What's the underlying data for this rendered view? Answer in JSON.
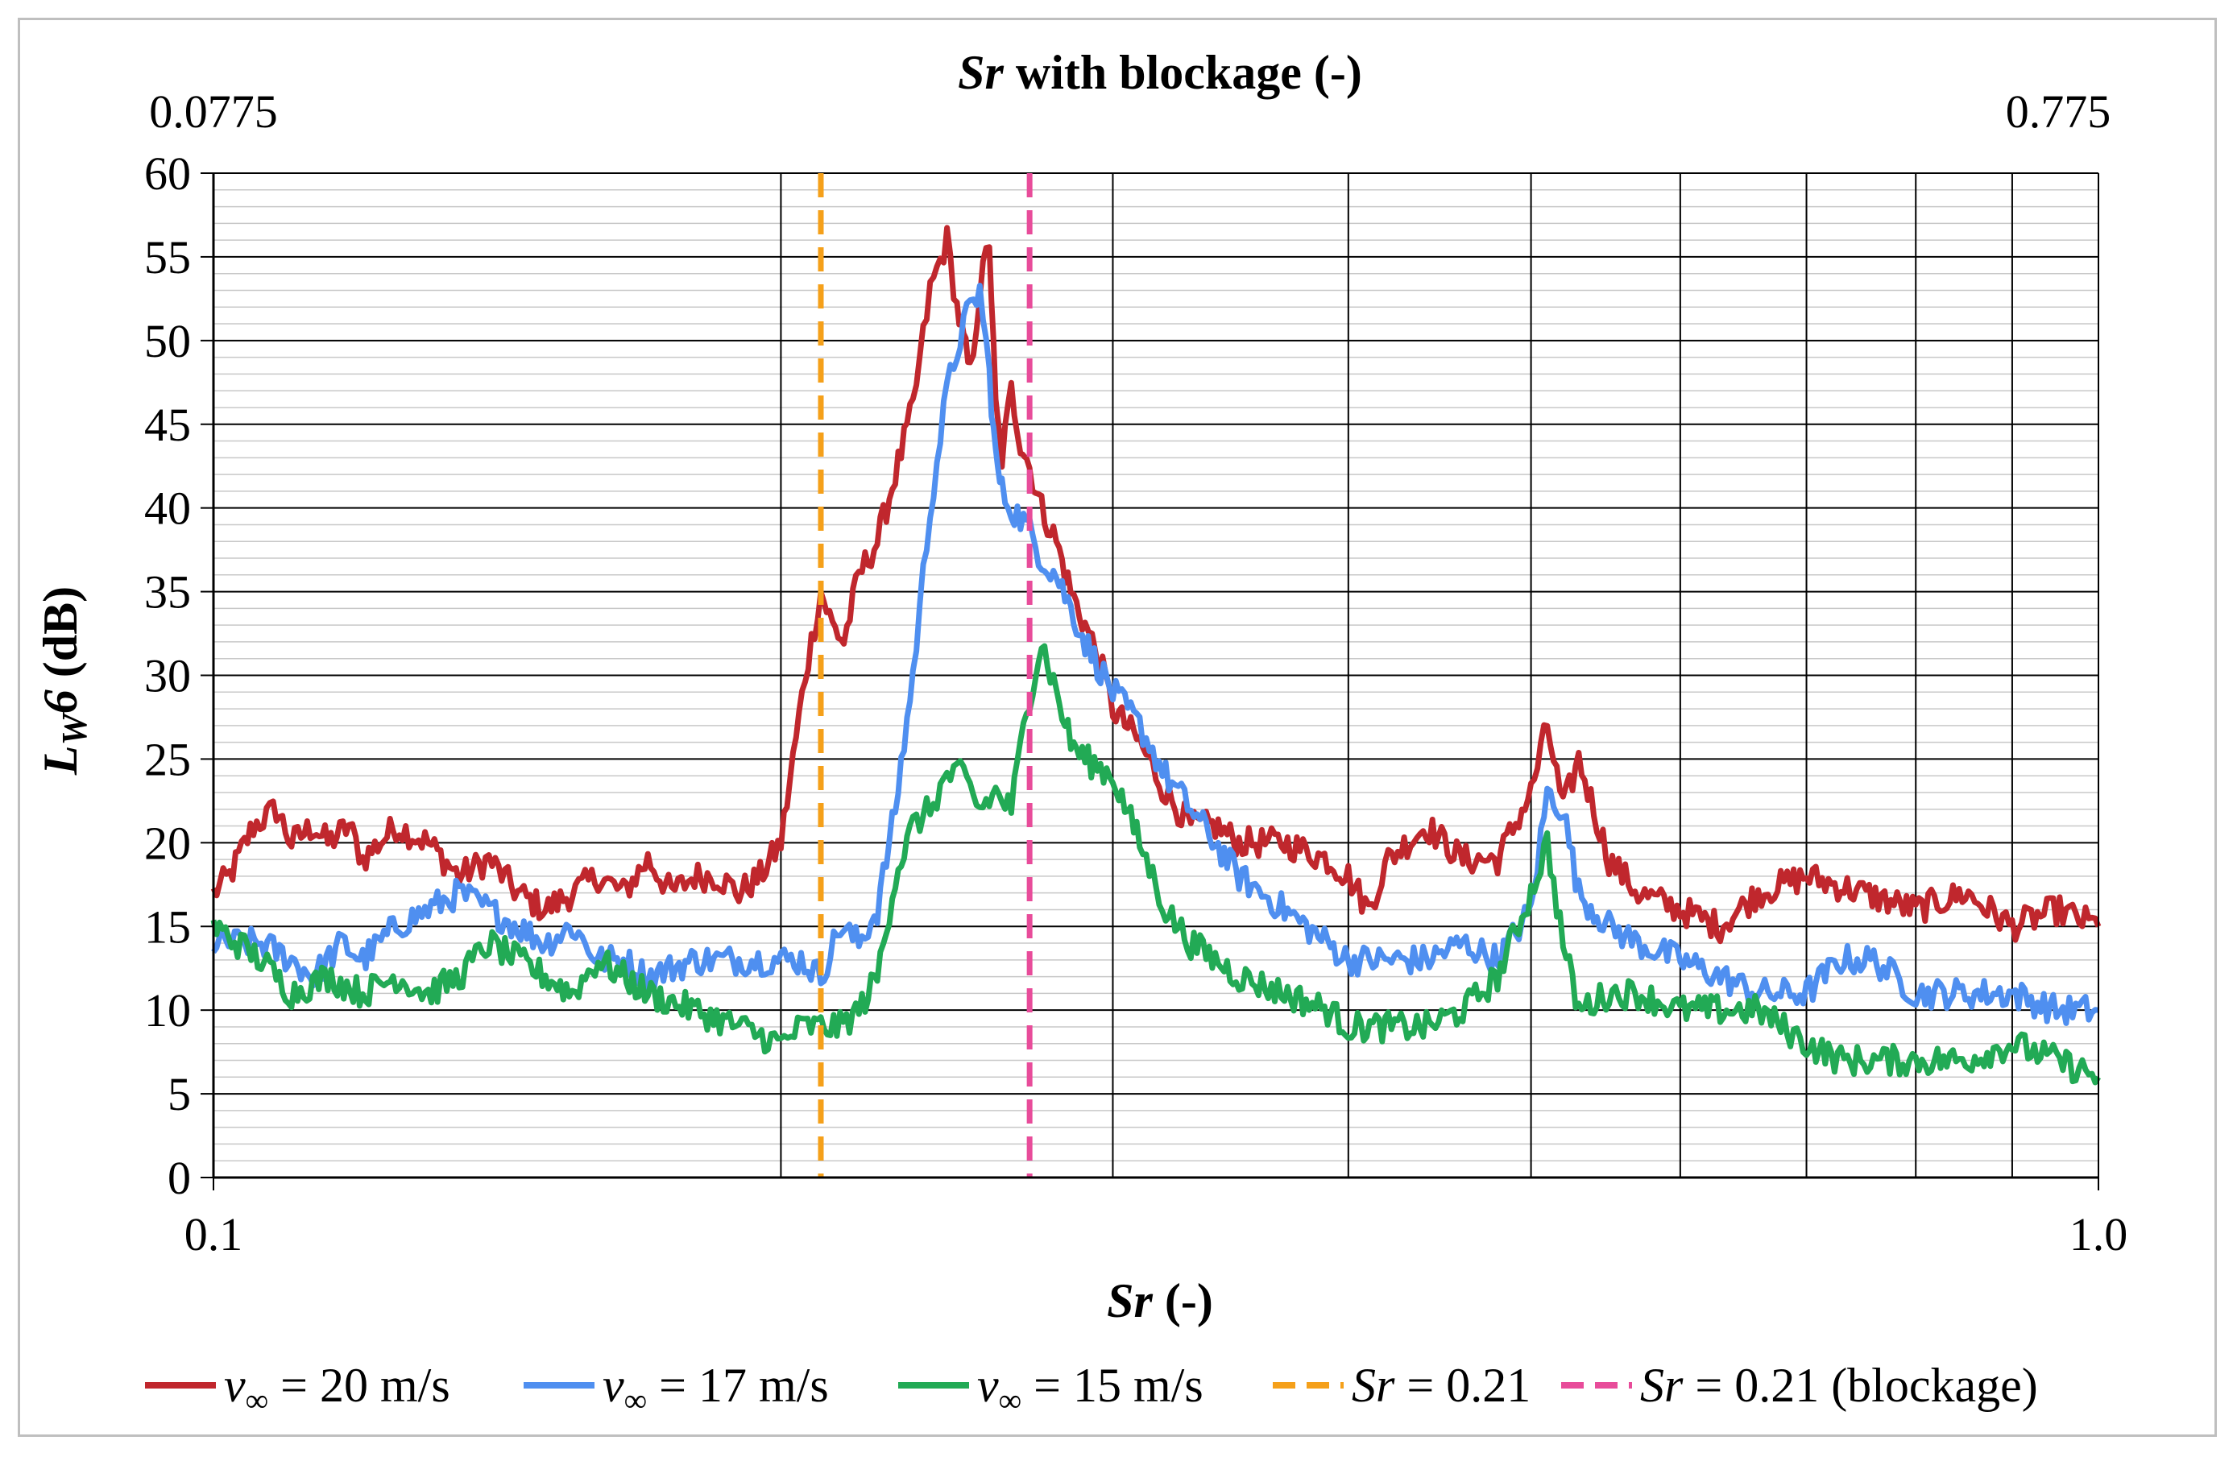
{
  "chart_data": {
    "type": "line",
    "title_top_axis": {
      "symbol": "Sr",
      "rest": " with blockage (-)"
    },
    "top_axis_ticks": [
      "0.0775",
      "0.775"
    ],
    "xlabel": {
      "symbol": "Sr",
      "rest": " (-)"
    },
    "ylabel": {
      "symbol": "L",
      "sub": "W",
      "tail": "6",
      "rest": " (dB)"
    },
    "x_scale": "log",
    "xlim": [
      0.1,
      1.0
    ],
    "x_tick_labels": [
      "0.1",
      "1.0"
    ],
    "ylim": [
      0,
      60
    ],
    "y_ticks": [
      0,
      5,
      10,
      15,
      20,
      25,
      30,
      35,
      40,
      45,
      50,
      55,
      60
    ],
    "y_tick_labels": [
      "0",
      "5",
      "10",
      "15",
      "20",
      "25",
      "30",
      "35",
      "40",
      "45",
      "50",
      "55",
      "60"
    ],
    "grid": {
      "major": true,
      "minor": true
    },
    "legend_position": "bottom",
    "series": [
      {
        "name": "v∞ = 20 m/s",
        "legend": {
          "symbol": "v",
          "sub": "∞",
          "rest": " = 20 m/s"
        },
        "color": "#c0272d",
        "x": [
          0.1,
          0.102,
          0.105,
          0.108,
          0.11,
          0.113,
          0.115,
          0.118,
          0.12,
          0.125,
          0.13,
          0.135,
          0.14,
          0.145,
          0.15,
          0.155,
          0.16,
          0.165,
          0.17,
          0.175,
          0.18,
          0.185,
          0.19,
          0.195,
          0.2,
          0.203,
          0.206,
          0.21,
          0.213,
          0.216,
          0.22,
          0.225,
          0.23,
          0.235,
          0.24,
          0.245,
          0.248,
          0.25,
          0.252,
          0.255,
          0.258,
          0.26,
          0.262,
          0.265,
          0.268,
          0.27,
          0.275,
          0.28,
          0.285,
          0.29,
          0.295,
          0.3,
          0.31,
          0.32,
          0.33,
          0.34,
          0.35,
          0.37,
          0.39,
          0.4,
          0.41,
          0.42,
          0.44,
          0.46,
          0.48,
          0.5,
          0.51,
          0.52,
          0.53,
          0.55,
          0.57,
          0.6,
          0.63,
          0.66,
          0.7,
          0.75,
          0.8,
          0.85,
          0.9,
          0.95,
          1.0
        ],
        "y": [
          17,
          18,
          21,
          22,
          20,
          21,
          20,
          21,
          19,
          21,
          20,
          18,
          19,
          17,
          16,
          17,
          18,
          17,
          19,
          17,
          18,
          18,
          17,
          18,
          20,
          25,
          30,
          35,
          33,
          32,
          36,
          38,
          42,
          46,
          53,
          56,
          52,
          50,
          48,
          53,
          56,
          46,
          43,
          47,
          44,
          43,
          40,
          38,
          35,
          33,
          31,
          28,
          26,
          23,
          21,
          21,
          20,
          20,
          19,
          18,
          16,
          19,
          21,
          19,
          19,
          23,
          27,
          22,
          25,
          19,
          17,
          16,
          15,
          17,
          18,
          17,
          16,
          17,
          15,
          16,
          15
        ]
      },
      {
        "name": "v∞ = 17 m/s",
        "legend": {
          "symbol": "v",
          "sub": "∞",
          "rest": " = 17 m/s"
        },
        "color": "#4f8ff0",
        "x": [
          0.1,
          0.103,
          0.106,
          0.11,
          0.113,
          0.117,
          0.12,
          0.125,
          0.13,
          0.135,
          0.14,
          0.145,
          0.15,
          0.155,
          0.16,
          0.165,
          0.17,
          0.18,
          0.19,
          0.2,
          0.205,
          0.21,
          0.215,
          0.22,
          0.225,
          0.23,
          0.235,
          0.24,
          0.245,
          0.25,
          0.255,
          0.258,
          0.26,
          0.262,
          0.265,
          0.27,
          0.275,
          0.28,
          0.285,
          0.29,
          0.3,
          0.31,
          0.32,
          0.33,
          0.34,
          0.35,
          0.37,
          0.39,
          0.4,
          0.42,
          0.44,
          0.46,
          0.48,
          0.5,
          0.51,
          0.52,
          0.53,
          0.55,
          0.57,
          0.6,
          0.63,
          0.66,
          0.7,
          0.73,
          0.76,
          0.8,
          0.85,
          0.9,
          0.95,
          1.0
        ],
        "y": [
          14,
          14,
          14,
          13,
          12,
          14,
          13,
          15,
          16,
          17,
          16,
          15,
          14,
          15,
          13,
          13,
          12,
          13,
          13,
          13,
          13,
          12,
          15,
          14,
          16,
          22,
          30,
          40,
          47,
          51,
          53,
          48,
          43,
          41,
          40,
          39,
          37,
          36,
          34,
          32,
          29,
          27,
          24,
          22,
          20,
          18,
          16,
          14,
          13,
          13,
          13,
          14,
          13,
          16,
          23,
          22,
          17,
          15,
          14,
          13,
          12,
          11,
          11,
          13,
          13,
          11,
          11,
          11,
          10,
          10
        ]
      },
      {
        "name": "v∞ = 15 m/s",
        "legend": {
          "symbol": "v",
          "sub": "∞",
          "rest": " = 15 m/s"
        },
        "color": "#22aa55",
        "x": [
          0.1,
          0.103,
          0.106,
          0.11,
          0.115,
          0.12,
          0.125,
          0.13,
          0.135,
          0.14,
          0.145,
          0.15,
          0.155,
          0.16,
          0.165,
          0.17,
          0.18,
          0.19,
          0.2,
          0.205,
          0.21,
          0.215,
          0.22,
          0.225,
          0.23,
          0.235,
          0.24,
          0.245,
          0.25,
          0.255,
          0.26,
          0.265,
          0.27,
          0.275,
          0.28,
          0.285,
          0.29,
          0.3,
          0.31,
          0.32,
          0.33,
          0.34,
          0.35,
          0.37,
          0.39,
          0.4,
          0.42,
          0.44,
          0.46,
          0.48,
          0.5,
          0.51,
          0.52,
          0.53,
          0.55,
          0.57,
          0.6,
          0.63,
          0.66,
          0.7,
          0.73,
          0.76,
          0.8,
          0.85,
          0.9,
          0.95,
          1.0
        ],
        "y": [
          15,
          14,
          13,
          11,
          12,
          11,
          12,
          11,
          12,
          14,
          13,
          12,
          11,
          13,
          12,
          11,
          10,
          9,
          8,
          9,
          9,
          9,
          10,
          12,
          18,
          21,
          22,
          24,
          24,
          22,
          23,
          22,
          28,
          32,
          29,
          26,
          25,
          24,
          20,
          16,
          14,
          13,
          12,
          11,
          10,
          9,
          9,
          9,
          10,
          12,
          17,
          20,
          14,
          10,
          11,
          11,
          10,
          10,
          10,
          8,
          7,
          7,
          7,
          7,
          8,
          7,
          6
        ]
      },
      {
        "name": "Sr = 0.21",
        "legend": {
          "symbol": "Sr",
          "rest": " = 0.21"
        },
        "color": "#f5a01a",
        "dashed": true,
        "x": [
          0.21,
          0.21
        ],
        "y": [
          0,
          60
        ]
      },
      {
        "name": "Sr = 0.21 (blockage)",
        "legend": {
          "symbol": "Sr",
          "rest": " = 0.21 (blockage)"
        },
        "color": "#e84c9a",
        "dashed": true,
        "x": [
          0.271,
          0.271
        ],
        "y": [
          0,
          60
        ]
      }
    ]
  }
}
